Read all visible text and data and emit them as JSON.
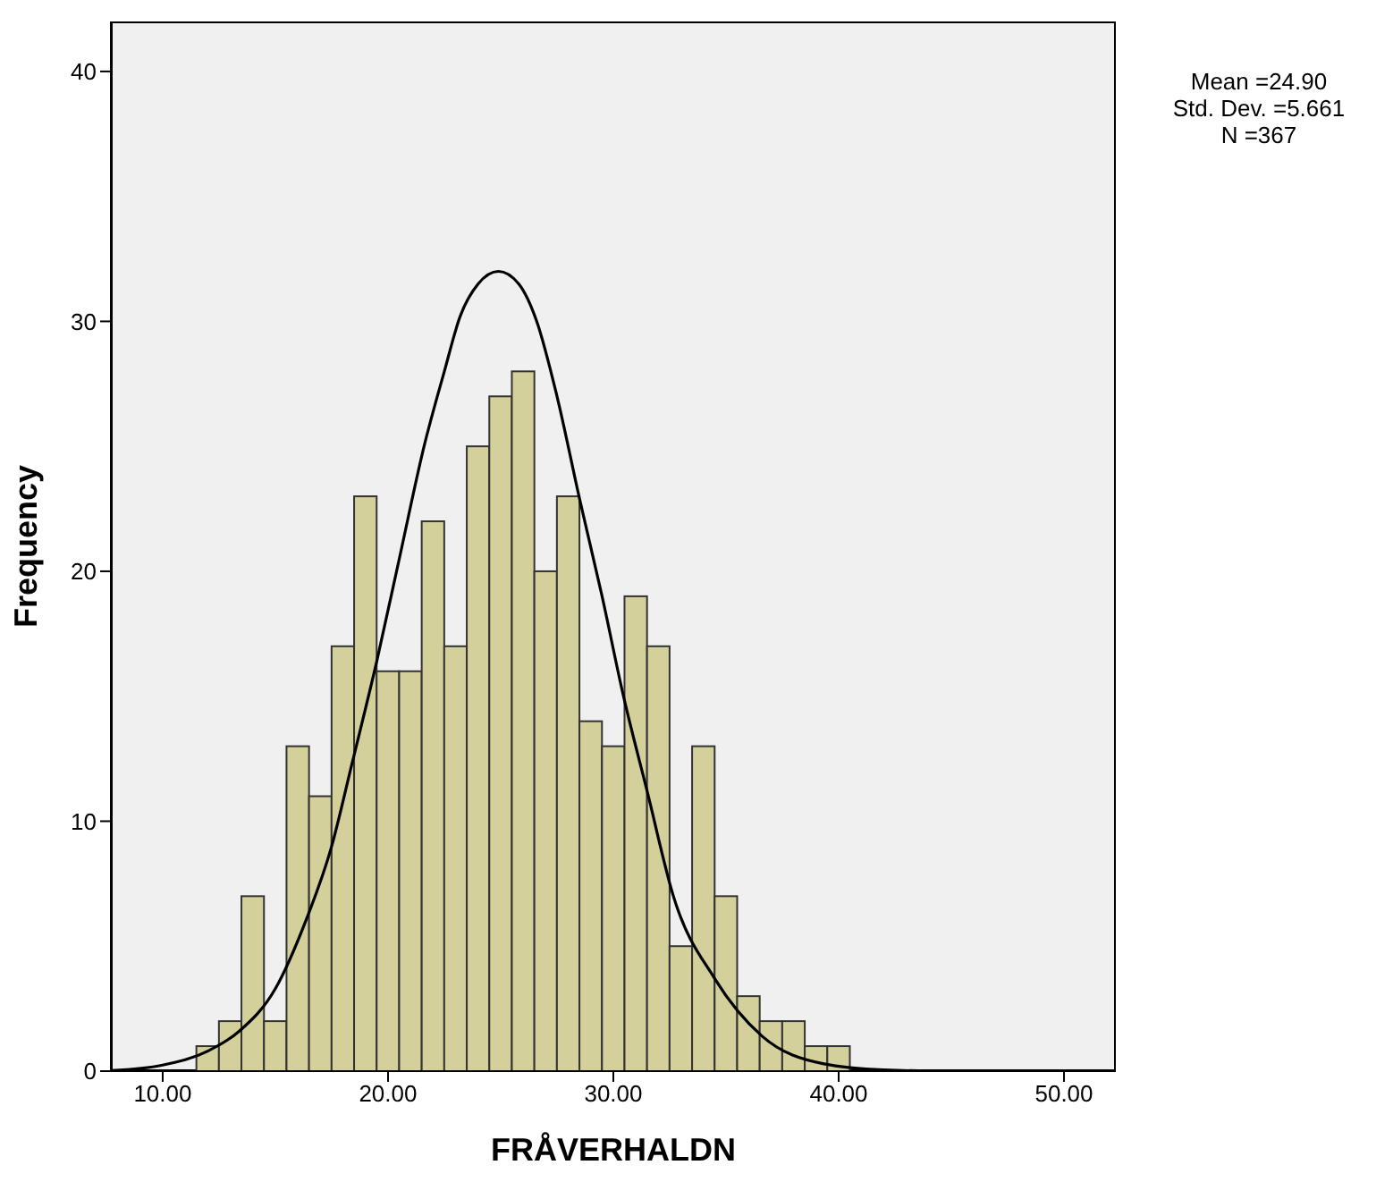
{
  "chart_data": {
    "type": "histogram",
    "xlabel": "FRÅVERHALDN",
    "ylabel": "Frequency",
    "bins": [
      11.5,
      12.5,
      13.5,
      14.5,
      15.5,
      16.5,
      17.5,
      18.5,
      19.5,
      20.5,
      21.5,
      22.5,
      23.5,
      24.5,
      25.5,
      26.5,
      27.5,
      28.5,
      29.5,
      30.5,
      31.5,
      32.5,
      33.5,
      34.5,
      35.5,
      36.5,
      37.5,
      38.5,
      39.5,
      40.5
    ],
    "values": [
      1,
      2,
      7,
      2,
      13,
      11,
      17,
      23,
      16,
      16,
      22,
      17,
      25,
      27,
      28,
      20,
      23,
      14,
      13,
      19,
      17,
      5,
      13,
      7,
      3,
      2,
      2,
      1,
      1
    ],
    "color": "#d3d09b",
    "series": [
      {
        "type": "line",
        "color": "#000000",
        "x": [
          7.7,
          10,
          12,
          13.4,
          15,
          16.3,
          17.5,
          18.4,
          19.5,
          20.5,
          21.6,
          22.5,
          23.2,
          24,
          24.9,
          25.8,
          26.6,
          27.5,
          28.5,
          29.5,
          30.45,
          31.5,
          32.7,
          34.5,
          36.6,
          39.3,
          42,
          45,
          52.3
        ],
        "values": [
          0.02,
          0.24,
          0.8,
          1.6,
          3.3,
          5.9,
          9,
          12.3,
          16.4,
          20.5,
          25,
          28,
          30.2,
          31.5,
          32,
          31.5,
          30,
          27,
          22.9,
          19,
          15,
          11.2,
          6.9,
          3.7,
          1.4,
          0.3,
          0.05,
          0,
          0
        ]
      }
    ],
    "xlim": [
      7.7,
      52.3
    ],
    "ylim": [
      0,
      42
    ],
    "xticks": [
      {
        "value": 10,
        "label": "10.00"
      },
      {
        "value": 20,
        "label": "20.00"
      },
      {
        "value": 30,
        "label": "30.00"
      },
      {
        "value": 40,
        "label": "40.00"
      },
      {
        "value": 50,
        "label": "50.00"
      }
    ],
    "yticks": [
      0,
      10,
      20,
      30,
      40
    ],
    "annotations": [
      "Mean =24.90",
      "Std. Dev. =5.661",
      "N =367"
    ]
  }
}
